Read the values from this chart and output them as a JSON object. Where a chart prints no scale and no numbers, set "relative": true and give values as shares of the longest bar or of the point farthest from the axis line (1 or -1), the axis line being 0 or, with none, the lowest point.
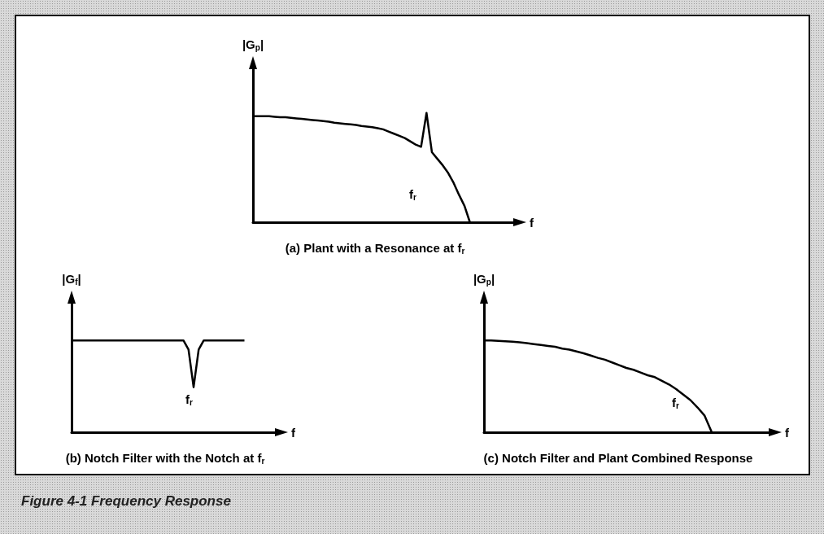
{
  "chart_data": [
    {
      "type": "line",
      "relative": true,
      "title": "(a) Plant with a Resonance at f$_{r}$",
      "xlabel": "f",
      "ylabel": "|G$_{p}$|",
      "tick_labels": false,
      "grid": false,
      "annotations": [
        "f$_{r}$",
        "Figure 4-1 Frequency Response"
      ],
      "categories": [
        null,
        null,
        null,
        null,
        null,
        null,
        null,
        null,
        null,
        null,
        null,
        null,
        null,
        null,
        null,
        null,
        null,
        null,
        null,
        null,
        null,
        null,
        null,
        null,
        null,
        null,
        null,
        null,
        null,
        null,
        null,
        null,
        null,
        null,
        null,
        null,
        null,
        null,
        null,
        null,
        null,
        null,
        null,
        null,
        null,
        null,
        null,
        null,
        null
      ],
      "series": [
        {
          "color": "#000000",
          "values": [
            0.97,
            0.97,
            0.97,
            0.97,
            0.965,
            0.96,
            0.96,
            0.955,
            0.95,
            0.945,
            0.94,
            0.935,
            0.93,
            0.925,
            0.92,
            0.91,
            0.905,
            0.9,
            0.895,
            0.89,
            0.88,
            0.875,
            0.87,
            0.86,
            0.85,
            0.83,
            0.81,
            0.79,
            0.77,
            0.74,
            0.71,
            0.69,
            1.0,
            0.64,
            0.58,
            0.52,
            0.45,
            0.36,
            0.25,
            0.15,
            0,
            null,
            null,
            null,
            null,
            null,
            null,
            null,
            null
          ]
        }
      ]
    },
    {
      "type": "line",
      "relative": true,
      "title": "(b) Notch Filter with the Notch at f$_{r}$",
      "xlabel": "f",
      "ylabel": "|G$_{f}$|",
      "tick_labels": false,
      "grid": false,
      "annotations": [
        "f$_{r}$"
      ],
      "categories": [
        null,
        null,
        null,
        null,
        null,
        null,
        null,
        null,
        null,
        null,
        null,
        null,
        null,
        null,
        null,
        null,
        null,
        null,
        null,
        null,
        null,
        null,
        null,
        null,
        null,
        null,
        null,
        null,
        null,
        null,
        null,
        null,
        null,
        null,
        null,
        null,
        null,
        null,
        null,
        null,
        null
      ],
      "series": [
        {
          "color": "#000000",
          "values": [
            1,
            1,
            1,
            1,
            1,
            1,
            1,
            1,
            1,
            1,
            1,
            1,
            1,
            1,
            1,
            1,
            1,
            1,
            1,
            1,
            1,
            1,
            1,
            0.9,
            0.49,
            0.9,
            1,
            1,
            1,
            1,
            1,
            1,
            1,
            1,
            1,
            null,
            null,
            null,
            null,
            null,
            null
          ]
        }
      ]
    },
    {
      "type": "line",
      "relative": true,
      "title": "(c) Notch Filter and Plant Combined Response",
      "xlabel": "f",
      "ylabel": "|G$_{p}$|",
      "tick_labels": false,
      "grid": false,
      "annotations": [
        "f$_{r}$"
      ],
      "categories": [
        null,
        null,
        null,
        null,
        null,
        null,
        null,
        null,
        null,
        null,
        null,
        null,
        null,
        null,
        null,
        null,
        null,
        null,
        null,
        null,
        null,
        null,
        null,
        null,
        null,
        null,
        null,
        null,
        null,
        null,
        null,
        null,
        null,
        null,
        null,
        null,
        null,
        null,
        null,
        null,
        null
      ],
      "series": [
        {
          "color": "#000000",
          "values": [
            1,
            1,
            0.995,
            0.99,
            0.985,
            0.98,
            0.97,
            0.96,
            0.95,
            0.94,
            0.93,
            0.91,
            0.9,
            0.88,
            0.86,
            0.835,
            0.81,
            0.79,
            0.76,
            0.73,
            0.7,
            0.68,
            0.65,
            0.62,
            0.6,
            0.56,
            0.52,
            0.47,
            0.41,
            0.35,
            0.27,
            0.18,
            0,
            null,
            null,
            null,
            null,
            null,
            null,
            null,
            null
          ]
        }
      ]
    }
  ]
}
